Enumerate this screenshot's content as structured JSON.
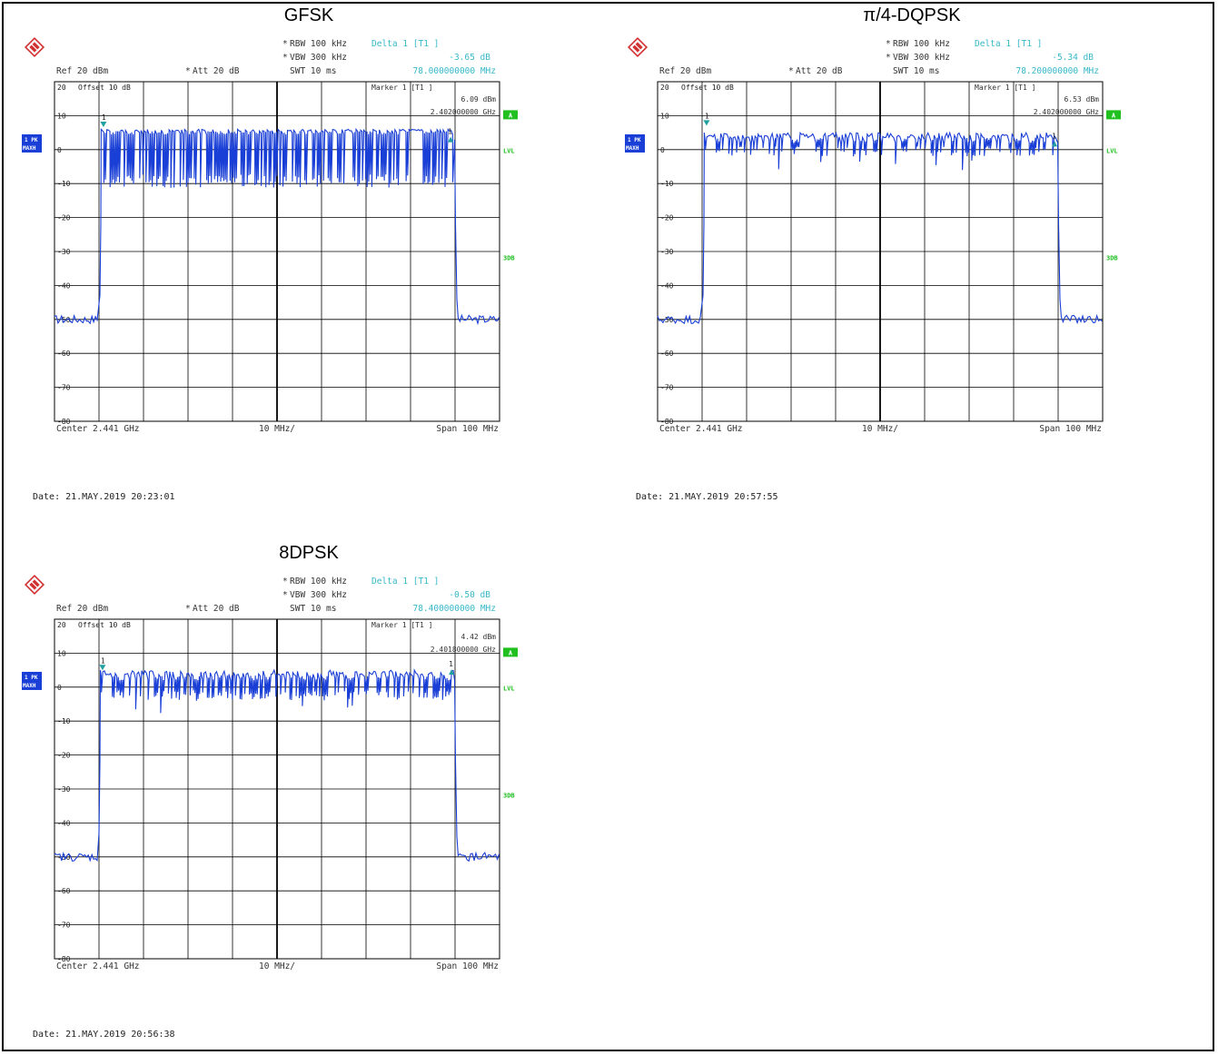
{
  "panels": [
    {
      "title": "GFSK",
      "rbw": "RBW 100 kHz",
      "vbw": "VBW 300 kHz",
      "delta_label": "Delta 1 [T1 ]",
      "delta_value": "-3.65 dB",
      "delta_freq": "78.000000000 MHz",
      "ref": "Ref  20 dBm",
      "att": "Att  20 dB",
      "swt": "SWT 10 ms",
      "offset": "Offset  10 dB",
      "marker_label": "Marker 1 [T1 ]",
      "marker_value": "6.09 dBm",
      "marker_freq": "2.402000000 GHz",
      "center": "Center 2.441 GHz",
      "div": "10 MHz/",
      "span": "Span 100 MHz",
      "date": "Date: 21.MAY.2019  20:23:01",
      "trace_label_1": "1 PK",
      "trace_label_2": "MAXH",
      "box_a": "A",
      "lvl": "LVL",
      "three_db": "3DB",
      "marker_num": "1"
    },
    {
      "title": "π/4-DQPSK",
      "rbw": "RBW 100 kHz",
      "vbw": "VBW 300 kHz",
      "delta_label": "Delta 1 [T1 ]",
      "delta_value": "-5.34 dB",
      "delta_freq": "78.200000000 MHz",
      "ref": "Ref  20 dBm",
      "att": "Att  20 dB",
      "swt": "SWT 10 ms",
      "offset": "Offset  10 dB",
      "marker_label": "Marker 1 [T1 ]",
      "marker_value": "6.53 dBm",
      "marker_freq": "2.402000000 GHz",
      "center": "Center 2.441 GHz",
      "div": "10 MHz/",
      "span": "Span 100 MHz",
      "date": "Date: 21.MAY.2019  20:57:55",
      "trace_label_1": "1 PK",
      "trace_label_2": "MAXH",
      "box_a": "A",
      "lvl": "LVL",
      "three_db": "3DB",
      "marker_num": "1"
    },
    {
      "title": "8DPSK",
      "rbw": "RBW 100 kHz",
      "vbw": "VBW 300 kHz",
      "delta_label": "Delta 1 [T1 ]",
      "delta_value": "-0.50 dB",
      "delta_freq": "78.400000000 MHz",
      "ref": "Ref  20 dBm",
      "att": "Att  20 dB",
      "swt": "SWT 10 ms",
      "offset": "Offset  10 dB",
      "marker_label": "Marker 1 [T1 ]",
      "marker_value": "4.42 dBm",
      "marker_freq": "2.401800000 GHz",
      "center": "Center 2.441 GHz",
      "div": "10 MHz/",
      "span": "Span 100 MHz",
      "date": "Date: 21.MAY.2019  20:56:38",
      "trace_label_1": "1 PK",
      "trace_label_2": "MAXH",
      "box_a": "A",
      "lvl": "LVL",
      "three_db": "3DB",
      "marker_num": "1"
    }
  ],
  "colors": {
    "trace": "#1a3fd6",
    "cyan_text": "#38b8c8",
    "green": "#20c020",
    "side_box": "#1a3fd6",
    "marker": "#20a0a0"
  },
  "icons": [
    "rohde-schwarz-logo-icon"
  ],
  "chart_data": [
    {
      "type": "line",
      "title": "GFSK",
      "xlabel": "",
      "ylabel": "",
      "x_range_mhz": [
        2391,
        2491
      ],
      "ylim": [
        -90,
        20
      ],
      "y_ticks": [
        20,
        10,
        0,
        -10,
        -20,
        -30,
        -40,
        -50,
        -60,
        -70,
        -80
      ],
      "grid": true,
      "noise_floor_dbm": -50,
      "band_start_mhz": 2401.5,
      "band_end_mhz": 2481,
      "band_top_dbm": 6,
      "band_bottom_dbm": -10,
      "marker_1": {
        "freq_mhz": 2402.0,
        "level_dbm": 6.09
      },
      "delta_1": {
        "freq_mhz": 78.0,
        "level_db": -3.65
      }
    },
    {
      "type": "line",
      "title": "π/4-DQPSK",
      "xlabel": "",
      "ylabel": "",
      "x_range_mhz": [
        2391,
        2491
      ],
      "ylim": [
        -90,
        20
      ],
      "y_ticks": [
        20,
        10,
        0,
        -10,
        -20,
        -30,
        -40,
        -50,
        -60,
        -70,
        -80
      ],
      "grid": true,
      "noise_floor_dbm": -50,
      "band_start_mhz": 2401.5,
      "band_end_mhz": 2481,
      "band_top_dbm": 5,
      "band_bottom_dbm": -2,
      "marker_1": {
        "freq_mhz": 2402.0,
        "level_dbm": 6.53
      },
      "delta_1": {
        "freq_mhz": 78.2,
        "level_db": -5.34
      }
    },
    {
      "type": "line",
      "title": "8DPSK",
      "xlabel": "",
      "ylabel": "",
      "x_range_mhz": [
        2391,
        2491
      ],
      "ylim": [
        -90,
        20
      ],
      "y_ticks": [
        20,
        10,
        0,
        -10,
        -20,
        -30,
        -40,
        -50,
        -60,
        -70,
        -80
      ],
      "grid": true,
      "noise_floor_dbm": -50,
      "band_start_mhz": 2401.3,
      "band_end_mhz": 2481,
      "band_top_dbm": 5,
      "band_bottom_dbm": -4,
      "marker_1": {
        "freq_mhz": 2401.8,
        "level_dbm": 4.42
      },
      "delta_1": {
        "freq_mhz": 78.4,
        "level_db": -0.5
      }
    }
  ]
}
